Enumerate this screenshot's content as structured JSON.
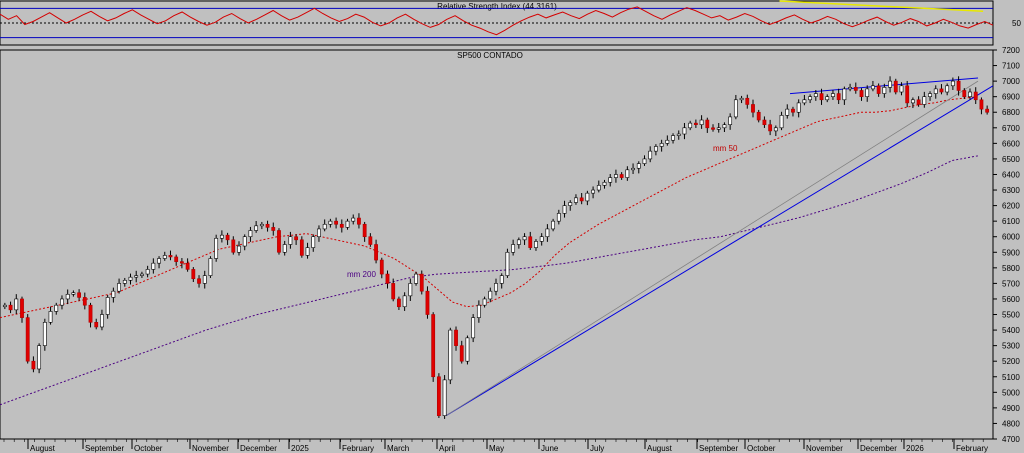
{
  "chart_data": [
    {
      "type": "line",
      "title": "Relative Strength Index (44.3161)",
      "ylim": [
        20,
        80
      ],
      "levels": [
        70,
        50,
        30
      ],
      "ytick_labels": [
        "50"
      ],
      "series": [
        {
          "color": "#d40000",
          "values": [
            62,
            55,
            60,
            48,
            52,
            58,
            64,
            57,
            50,
            55,
            61,
            66,
            59,
            53,
            57,
            63,
            68,
            61,
            55,
            49,
            53,
            60,
            65,
            58,
            52,
            47,
            51,
            58,
            63,
            56,
            50,
            55,
            61,
            67,
            60,
            54,
            58,
            64,
            70,
            63,
            57,
            52,
            56,
            62,
            58,
            51,
            46,
            50,
            57,
            62,
            55,
            49,
            44,
            48,
            55,
            60,
            53,
            47,
            43,
            38,
            34,
            40,
            47,
            53,
            58,
            62,
            57,
            61,
            65,
            60,
            56,
            62,
            67,
            63,
            58,
            64,
            69,
            72,
            66,
            60,
            55,
            61,
            66,
            71,
            67,
            62,
            57,
            60,
            54,
            58,
            63,
            59,
            53,
            48,
            52,
            57,
            61,
            55,
            50,
            54,
            59,
            55,
            49,
            45,
            49,
            54,
            58,
            52,
            47,
            51,
            56,
            52,
            46,
            50,
            55,
            51,
            46,
            43,
            48,
            52,
            47
          ]
        }
      ],
      "trendlines": [
        {
          "color": "#e8e800",
          "from": [
            0.785,
            80
          ],
          "to": [
            0.99,
            66
          ]
        }
      ]
    },
    {
      "type": "line",
      "title": "SP500 CONTADO",
      "ylim": [
        4700,
        7200
      ],
      "yticks": [
        4700,
        4800,
        4900,
        5000,
        5100,
        5200,
        5300,
        5400,
        5500,
        5600,
        5700,
        5800,
        5900,
        6000,
        6100,
        6200,
        6300,
        6400,
        6500,
        6600,
        6700,
        6800,
        6900,
        7000,
        7100,
        7200
      ],
      "ytick_labels": [
        "4700",
        "4800",
        "4900",
        "5000",
        "5100",
        "5200",
        "5300",
        "5400",
        "5500",
        "5600",
        "5700",
        "5800",
        "5900",
        "6000",
        "6100",
        "6200",
        "6300",
        "6400",
        "6500",
        "6600",
        "6700",
        "6800",
        "6900",
        "7000",
        "7100",
        "7200"
      ],
      "x_labels": [
        "August",
        "September",
        "October",
        "November",
        "December",
        "2025",
        "February",
        "March",
        "April",
        "May",
        "June",
        "July",
        "August",
        "September",
        "October",
        "November",
        "December",
        "2026",
        "February"
      ],
      "annotations": [
        "mm 50",
        "mm 200"
      ],
      "series": [
        {
          "kind": "candles",
          "values": [
            5560,
            5530,
            5600,
            5480,
            5200,
            5150,
            5300,
            5450,
            5520,
            5560,
            5600,
            5630,
            5640,
            5610,
            5560,
            5450,
            5420,
            5500,
            5610,
            5650,
            5700,
            5720,
            5740,
            5750,
            5760,
            5790,
            5830,
            5860,
            5880,
            5870,
            5840,
            5830,
            5790,
            5730,
            5700,
            5750,
            5860,
            5990,
            6010,
            5980,
            5900,
            5940,
            6000,
            6040,
            6070,
            6080,
            6060,
            6040,
            5900,
            5950,
            6000,
            5980,
            5880,
            5930,
            6000,
            6050,
            6080,
            6100,
            6080,
            6060,
            6100,
            6120,
            6080,
            6000,
            5950,
            5850,
            5760,
            5700,
            5600,
            5550,
            5620,
            5700,
            5760,
            5650,
            5500,
            5100,
            4850,
            5080,
            5400,
            5300,
            5200,
            5350,
            5480,
            5560,
            5600,
            5650,
            5700,
            5750,
            5900,
            5950,
            5980,
            6000,
            5930,
            5970,
            6000,
            6050,
            6100,
            6150,
            6200,
            6220,
            6250,
            6230,
            6280,
            6300,
            6330,
            6350,
            6380,
            6400,
            6380,
            6430,
            6440,
            6470,
            6500,
            6550,
            6580,
            6600,
            6620,
            6650,
            6660,
            6700,
            6730,
            6720,
            6750,
            6700,
            6690,
            6700,
            6720,
            6770,
            6880,
            6890,
            6850,
            6800,
            6750,
            6720,
            6680,
            6700,
            6780,
            6820,
            6800,
            6860,
            6880,
            6900,
            6920,
            6880,
            6900,
            6920,
            6880,
            6950,
            6960,
            6940,
            6900,
            6950,
            6970,
            6920,
            6960,
            7000,
            6930,
            6970,
            6860,
            6880,
            6850,
            6900,
            6920,
            6950,
            6930,
            6970,
            7000,
            6940,
            6900,
            6930,
            6880,
            6820,
            6800
          ]
        },
        {
          "name": "mm 50",
          "color": "#d40000",
          "dash": "dotted",
          "values": [
            5480,
            5500,
            5520,
            5540,
            5560,
            5580,
            5600,
            5620,
            5640,
            5680,
            5720,
            5760,
            5800,
            5840,
            5880,
            5920,
            5940,
            5960,
            5980,
            6000,
            6010,
            6020,
            6000,
            5980,
            5960,
            5940,
            5900,
            5860,
            5800,
            5740,
            5660,
            5580,
            5550,
            5560,
            5600,
            5640,
            5700,
            5780,
            5880,
            5960,
            6020,
            6080,
            6130,
            6180,
            6230,
            6280,
            6330,
            6380,
            6420,
            6460,
            6500,
            6540,
            6580,
            6620,
            6660,
            6700,
            6740,
            6760,
            6780,
            6800,
            6800,
            6810,
            6830,
            6850,
            6860,
            6880,
            6890,
            6900
          ]
        },
        {
          "name": "mm 200",
          "color": "#4b0082",
          "dash": "dotted",
          "values": [
            4920,
            4980,
            5040,
            5100,
            5160,
            5220,
            5280,
            5340,
            5400,
            5450,
            5500,
            5540,
            5580,
            5620,
            5660,
            5700,
            5740,
            5760,
            5770,
            5780,
            5790,
            5810,
            5830,
            5860,
            5890,
            5920,
            5950,
            5980,
            6000,
            6040,
            6080,
            6120,
            6170,
            6220,
            6280,
            6340,
            6410,
            6490,
            6520
          ]
        }
      ],
      "trendlines": [
        {
          "color": "#0000e0",
          "from": [
            4850,
            "April"
          ],
          "to": [
            6980,
            "February"
          ]
        },
        {
          "color": "#808080",
          "from": [
            4850,
            "April"
          ],
          "to": [
            7000,
            "February"
          ]
        },
        {
          "color": "#0000e0",
          "from": [
            6920,
            "October"
          ],
          "to": [
            7020,
            "February"
          ]
        }
      ]
    }
  ]
}
